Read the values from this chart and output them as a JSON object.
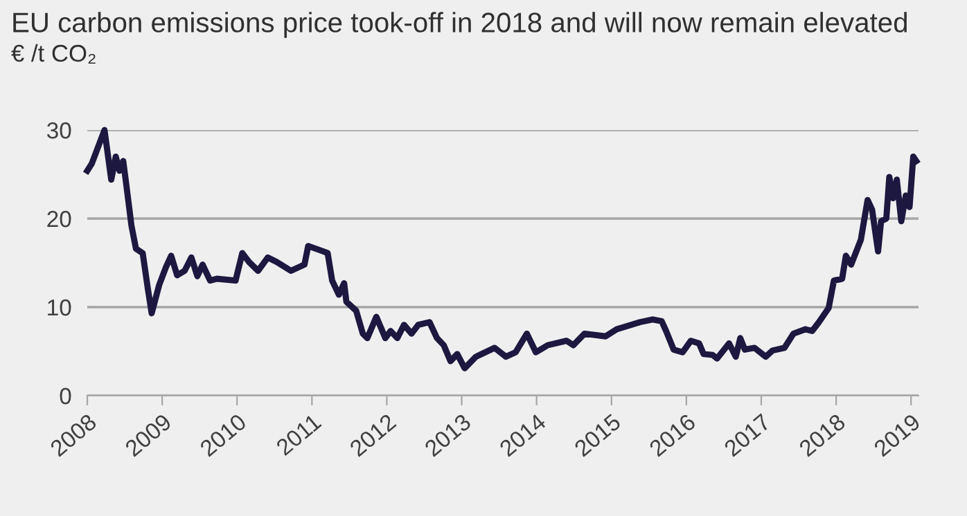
{
  "chart_data": {
    "type": "line",
    "title": "EU carbon emissions price took-off in 2018 and will now remain elevated",
    "subtitle": "€ /t CO₂",
    "x": [
      2008.0,
      2008.06,
      2008.23,
      2008.32,
      2008.38,
      2008.43,
      2008.48,
      2008.52,
      2008.59,
      2008.65,
      2008.74,
      2008.81,
      2008.86,
      2008.96,
      2009.05,
      2009.12,
      2009.2,
      2009.3,
      2009.39,
      2009.47,
      2009.54,
      2009.64,
      2009.73,
      2009.98,
      2010.07,
      2010.16,
      2010.28,
      2010.41,
      2010.53,
      2010.72,
      2010.9,
      2010.95,
      2011.15,
      2011.21,
      2011.27,
      2011.36,
      2011.43,
      2011.46,
      2011.59,
      2011.68,
      2011.74,
      2011.86,
      2011.98,
      2012.05,
      2012.14,
      2012.23,
      2012.33,
      2012.42,
      2012.57,
      2012.67,
      2012.76,
      2012.85,
      2012.94,
      2013.04,
      2013.19,
      2013.44,
      2013.59,
      2013.72,
      2013.87,
      2013.99,
      2014.15,
      2014.4,
      2014.49,
      2014.64,
      2014.92,
      2015.07,
      2015.38,
      2015.55,
      2015.67,
      2015.73,
      2015.83,
      2015.95,
      2016.06,
      2016.17,
      2016.23,
      2016.35,
      2016.41,
      2016.57,
      2016.66,
      2016.72,
      2016.78,
      2016.91,
      2017.06,
      2017.15,
      2017.31,
      2017.43,
      2017.59,
      2017.68,
      2017.77,
      2017.9,
      2017.97,
      2018.08,
      2018.13,
      2018.2,
      2018.33,
      2018.42,
      2018.48,
      2018.56,
      2018.6,
      2018.67,
      2018.71,
      2018.76,
      2018.81,
      2018.87,
      2018.93,
      2018.98,
      2019.03,
      2019.07
    ],
    "series": [
      {
        "color": "#1c1840",
        "values": [
          25.4,
          26.2,
          30,
          24.4,
          27,
          25.4,
          26.5,
          23.9,
          19.2,
          16.6,
          16.1,
          12,
          9.3,
          12.5,
          14.5,
          15.8,
          13.6,
          14.1,
          15.6,
          13.5,
          14.8,
          13,
          13.2,
          13,
          16.1,
          15.1,
          14.1,
          15.6,
          15.1,
          14.1,
          14.8,
          16.9,
          16.3,
          16.1,
          13,
          11.4,
          12.7,
          10.6,
          9.6,
          7,
          6.5,
          8.9,
          6.5,
          7.3,
          6.5,
          8,
          7,
          8,
          8.3,
          6.5,
          5.7,
          3.9,
          4.7,
          3.1,
          4.4,
          5.4,
          4.4,
          4.9,
          7,
          4.9,
          5.7,
          6.2,
          5.7,
          7,
          6.7,
          7.5,
          8.3,
          8.6,
          8.4,
          7.3,
          5.2,
          4.9,
          6.2,
          5.9,
          4.7,
          4.6,
          4.2,
          5.9,
          4.4,
          6.5,
          5.2,
          5.4,
          4.4,
          5.1,
          5.4,
          7,
          7.5,
          7.3,
          8.3,
          9.9,
          13,
          13.2,
          15.8,
          14.8,
          17.6,
          22.1,
          21,
          16.3,
          19.7,
          20,
          24.7,
          22.3,
          24.4,
          19.7,
          22.6,
          21.3,
          27,
          26.5
        ]
      }
    ],
    "xlim": [
      2008,
      2019.1
    ],
    "xticks": [
      2008,
      2009,
      2010,
      2011,
      2012,
      2013,
      2014,
      2015,
      2016,
      2017,
      2018,
      2019
    ],
    "ylim": [
      0,
      30
    ],
    "yticks": [
      0,
      10,
      20,
      30
    ],
    "grid": "y",
    "marker": "none",
    "line_style": "solid"
  }
}
